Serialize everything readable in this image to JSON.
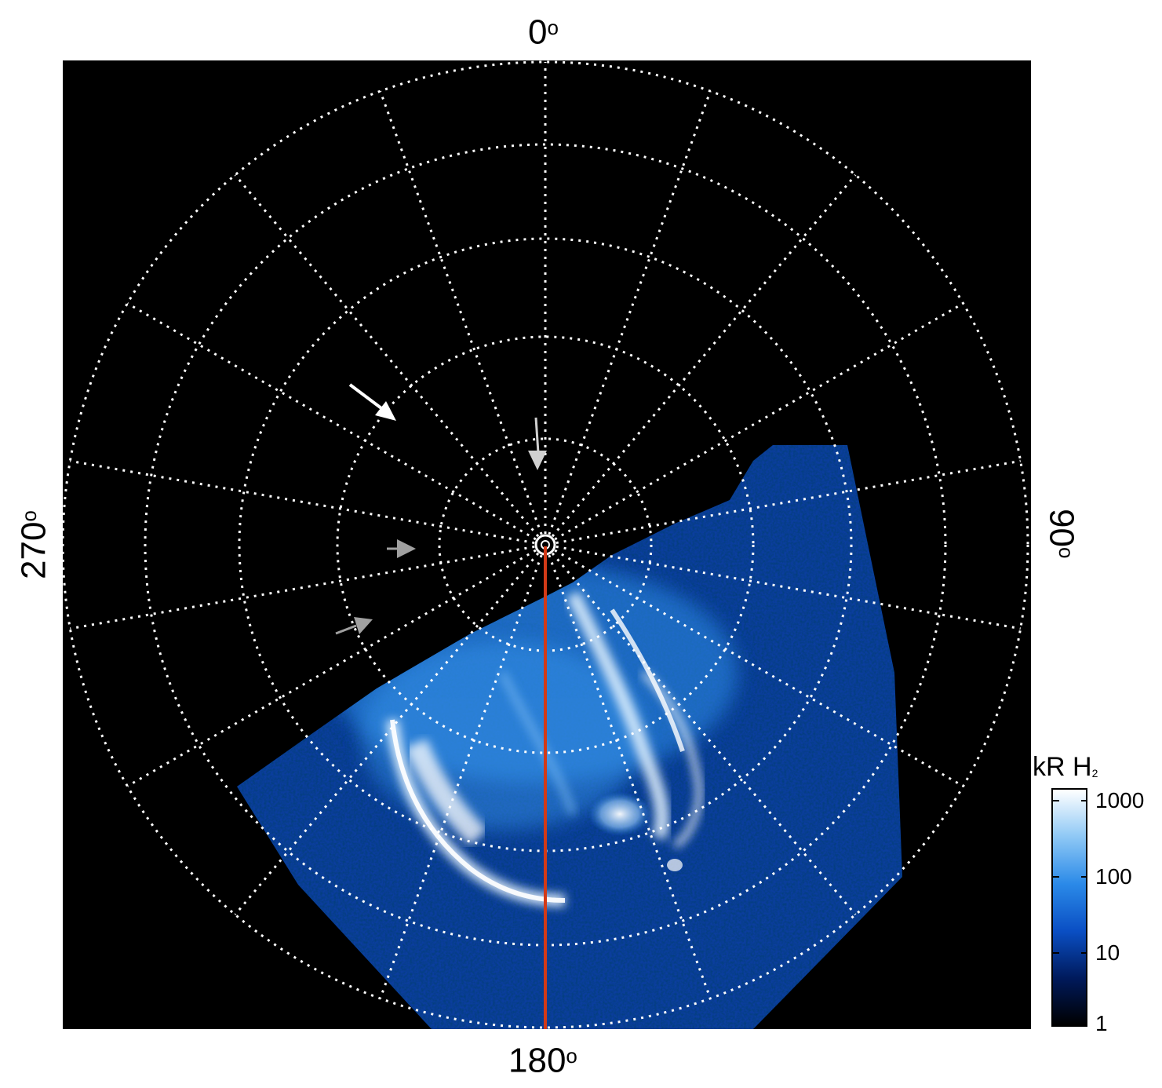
{
  "labels": {
    "top": "0",
    "bottom": "180",
    "left": "270",
    "right": "90",
    "degree_symbol": "o"
  },
  "colorbar": {
    "title": "kR H",
    "title_sub": "2",
    "ticks": [
      "1000",
      "100",
      "10",
      "1"
    ],
    "colors": [
      "#000000",
      "#001a5c",
      "#0a4fc4",
      "#2b8ae8",
      "#8ec8f5",
      "#ffffff"
    ]
  },
  "colors": {
    "background": "#000000",
    "grid": "#ffffff",
    "meridian_line": "#d23a17",
    "arrow_primary": "#ffffff",
    "arrow_secondary": "#b4b4b4"
  }
}
